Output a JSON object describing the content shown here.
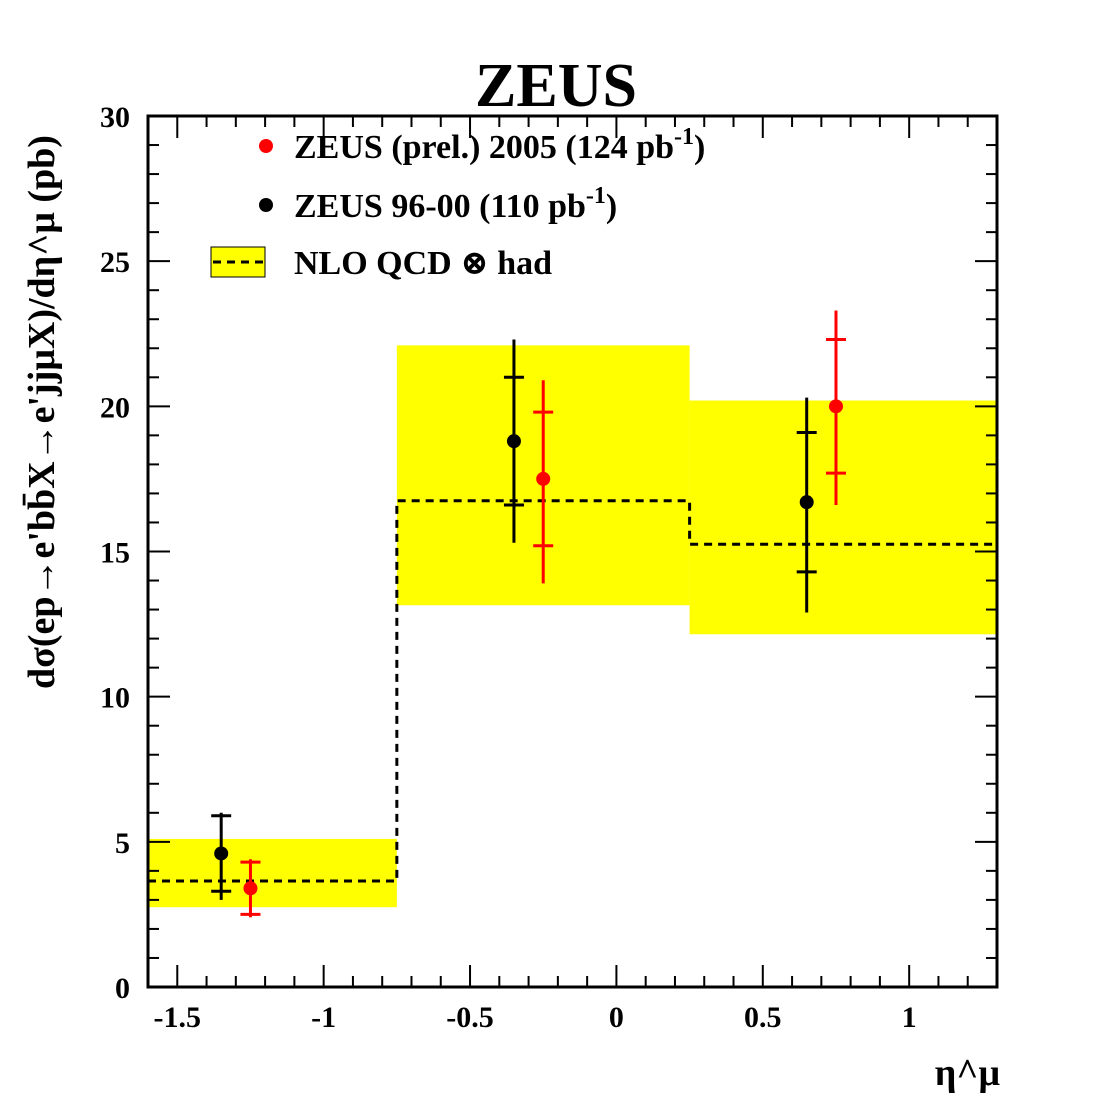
{
  "chart_data": {
    "type": "scatter",
    "title": "ZEUS",
    "ylabel": "dσ(ep→e'bb̄X→e'jjμX)/dη^μ (pb)",
    "xlabel": "η^μ",
    "xlim": [
      -1.6,
      1.3
    ],
    "ylim": [
      0,
      30
    ],
    "xticks": [
      -1.5,
      -1,
      -0.5,
      0,
      0.5,
      1
    ],
    "xtick_labels": [
      "-1.5",
      "-1",
      "-0.5",
      "0",
      "0.5",
      "1"
    ],
    "yticks": [
      0,
      5,
      10,
      15,
      20,
      25,
      30
    ],
    "ytick_labels": [
      "0",
      "5",
      "10",
      "15",
      "20",
      "25",
      "30"
    ],
    "legend": [
      {
        "key": "zeus2005",
        "text": "ZEUS (prel.) 2005 (124 pb",
        "sup": "-1",
        "tail": ")",
        "color": "#ff0000",
        "marker": "dot"
      },
      {
        "key": "zeus9600",
        "text": "ZEUS 96-00 (110 pb",
        "sup": "-1",
        "tail": ")",
        "color": "#000000",
        "marker": "dot"
      },
      {
        "key": "nlo",
        "text": "NLO QCD ⊗ had",
        "sup": "",
        "tail": "",
        "color": "#ffff00",
        "marker": "band"
      }
    ],
    "nlo": {
      "name": "NLO QCD ⊗ had",
      "band_color": "#ffff00",
      "bins": [
        {
          "lo": -1.6,
          "hi": -0.75,
          "central": 3.65,
          "band_low": 2.75,
          "band_high": 5.1
        },
        {
          "lo": -0.75,
          "hi": 0.25,
          "central": 16.75,
          "band_low": 13.15,
          "band_high": 22.1
        },
        {
          "lo": 0.25,
          "hi": 1.3,
          "central": 15.25,
          "band_low": 12.15,
          "band_high": 20.2
        }
      ]
    },
    "series": [
      {
        "name": "ZEUS (prel.) 2005 (124 pb-1)",
        "color": "#ff0000",
        "points": [
          {
            "x": -1.25,
            "y": 3.4,
            "stat_low": 2.5,
            "stat_high": 4.3,
            "tot_low": 2.4,
            "tot_high": 4.4
          },
          {
            "x": -0.25,
            "y": 17.5,
            "stat_low": 15.2,
            "stat_high": 19.8,
            "tot_low": 13.9,
            "tot_high": 20.9
          },
          {
            "x": 0.75,
            "y": 20.0,
            "stat_low": 17.7,
            "stat_high": 22.3,
            "tot_low": 16.6,
            "tot_high": 23.3
          }
        ]
      },
      {
        "name": "ZEUS 96-00 (110 pb-1)",
        "color": "#000000",
        "points": [
          {
            "x": -1.35,
            "y": 4.6,
            "stat_low": 3.3,
            "stat_high": 5.9,
            "tot_low": 3.0,
            "tot_high": 6.0
          },
          {
            "x": -0.35,
            "y": 18.8,
            "stat_low": 16.6,
            "stat_high": 21.0,
            "tot_low": 15.3,
            "tot_high": 22.3
          },
          {
            "x": 0.65,
            "y": 16.7,
            "stat_low": 14.3,
            "stat_high": 19.1,
            "tot_low": 12.9,
            "tot_high": 20.3
          }
        ]
      }
    ]
  }
}
